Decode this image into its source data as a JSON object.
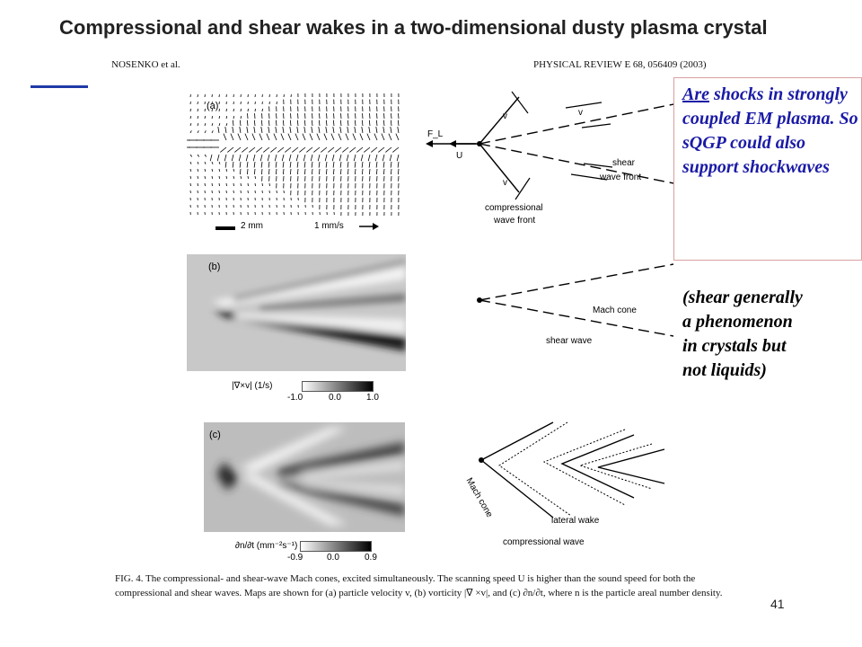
{
  "title": "Compressional and shear wakes in a two-dimensional dusty plasma crystal",
  "paper_header": {
    "authors": "NOSENKO et al.",
    "journal": "PHYSICAL REVIEW E 68, 056409 (2003)"
  },
  "panels": {
    "a": {
      "label": "(a)",
      "scale_length": "2 mm",
      "scale_velocity": "1 mm/s"
    },
    "b": {
      "label": "(b)",
      "colorbar_label": "|∇×v| (1/s)",
      "colorbar_ticks": [
        "-1.0",
        "0.0",
        "1.0"
      ]
    },
    "c": {
      "label": "(c)",
      "colorbar_label": "∂n/∂t (mm⁻²s⁻¹)",
      "colorbar_ticks": [
        "-0.9",
        "0.0",
        "0.9"
      ]
    }
  },
  "diagrams": {
    "a": {
      "force": "F_L",
      "velocity": "U",
      "v_top": "v",
      "v_right": "v",
      "v_bottom": "v",
      "shear": "shear",
      "wave_front": "wave front",
      "compressional": "compressional",
      "compressional_front": "wave front"
    },
    "b": {
      "mach_cone": "Mach cone",
      "shear_wave": "shear wave"
    },
    "c": {
      "mach_cone": "Mach cone",
      "lateral_wake": "lateral wake",
      "compressional_wave": "compressional wave"
    }
  },
  "callout": {
    "first_word": "Are",
    "rest": " shocks in strongly coupled EM plasma. So sQGP could also support shockwaves"
  },
  "note": "(shear generally\na phenomenon\nin crystals but\nnot liquids)",
  "caption": "FIG. 4. The compressional- and shear-wave Mach cones, excited simultaneously. The scanning speed U is higher than the sound speed for both the compressional and shear waves. Maps are shown for (a) particle velocity v, (b) vorticity |∇ ×v|, and (c) ∂n/∂t, where n is the particle areal number density.",
  "page_number": "41"
}
